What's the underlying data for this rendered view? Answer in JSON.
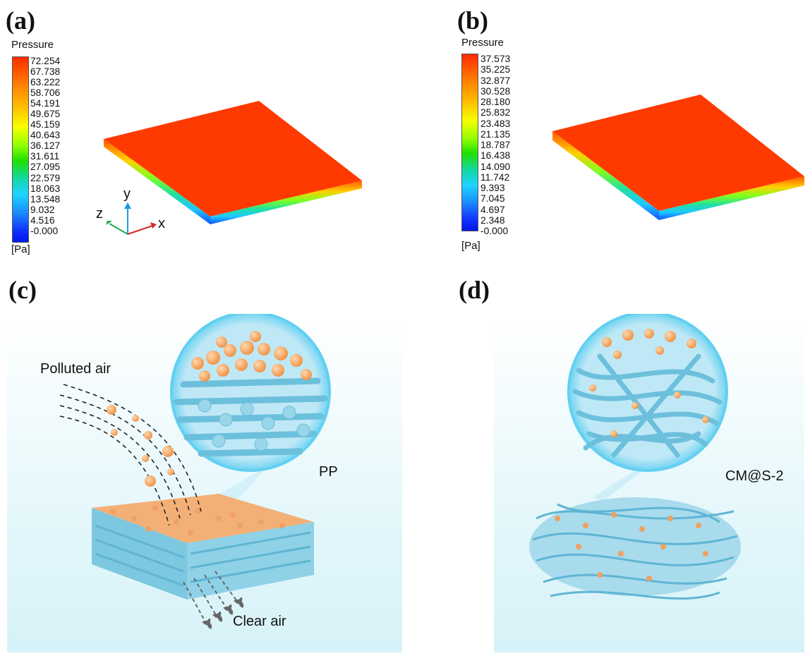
{
  "panels": {
    "a": {
      "letter": "(a)",
      "legend_title": "Pressure",
      "unit": "[Pa]",
      "ticks": [
        "72.254",
        "67.738",
        "63.222",
        "58.706",
        "54.191",
        "49.675",
        "45.159",
        "40.643",
        "36.127",
        "31.611",
        "27.095",
        "22.579",
        "18.063",
        "13.548",
        "9.032",
        "4.516",
        "-0.000"
      ],
      "axes": {
        "x": "x",
        "y": "y",
        "z": "z"
      }
    },
    "b": {
      "letter": "(b)",
      "legend_title": "Pressure",
      "unit": "[Pa]",
      "ticks": [
        "37.573",
        "35.225",
        "32.877",
        "30.528",
        "28.180",
        "25.832",
        "23.483",
        "21.135",
        "18.787",
        "16.438",
        "14.090",
        "11.742",
        "9.393",
        "7.045",
        "4.697",
        "2.348",
        "-0.000"
      ]
    },
    "c": {
      "letter": "(c)",
      "polluted_label": "Polluted air",
      "material_label": "PP",
      "clear_label": "Clear air"
    },
    "d": {
      "letter": "(d)",
      "material_label": "CM@S-2"
    }
  },
  "colors": {
    "slab_top": "#ff3a00",
    "fiber": "#7cc8e0",
    "particle": "#f5a05a",
    "background_glow": "#dff6fb"
  }
}
